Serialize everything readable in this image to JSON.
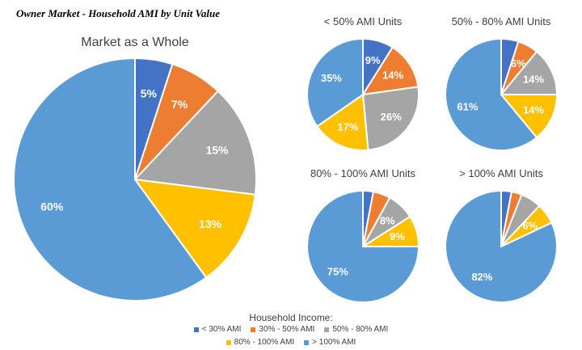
{
  "header": {
    "title": "Owner Market - Household AMI by Unit Value"
  },
  "chart_data": [
    {
      "type": "pie",
      "title": "Market as a Whole",
      "categories": [
        "< 30% AMI",
        "30% - 50% AMI",
        "50% - 80% AMI",
        "80% - 100% AMI",
        "> 100% AMI"
      ],
      "values": [
        5,
        7,
        15,
        13,
        60
      ],
      "labels": [
        "5%",
        "7%",
        "15%",
        "13%",
        "60%"
      ]
    },
    {
      "type": "pie",
      "title": "< 50% AMI Units",
      "categories": [
        "< 30% AMI",
        "30% - 50% AMI",
        "50% - 80% AMI",
        "80% - 100% AMI",
        "> 100% AMI"
      ],
      "values": [
        9,
        14,
        26,
        17,
        35
      ],
      "labels": [
        "9%",
        "14%",
        "26%",
        "17%",
        "35%"
      ]
    },
    {
      "type": "pie",
      "title": "50% - 80% AMI Units",
      "categories": [
        "< 30% AMI",
        "30% - 50% AMI",
        "50% - 80% AMI",
        "80% - 100% AMI",
        "> 100% AMI"
      ],
      "values": [
        5,
        6,
        14,
        14,
        61
      ],
      "labels": [
        "",
        "6%",
        "14%",
        "14%",
        "61%"
      ]
    },
    {
      "type": "pie",
      "title": "80% - 100% AMI Units",
      "categories": [
        "< 30% AMI",
        "30% - 50% AMI",
        "50% - 80% AMI",
        "80% - 100% AMI",
        "> 100% AMI"
      ],
      "values": [
        3,
        5,
        8,
        9,
        75
      ],
      "labels": [
        "",
        "",
        "8%",
        "9%",
        "75%"
      ]
    },
    {
      "type": "pie",
      "title": "> 100% AMI Units",
      "categories": [
        "< 30% AMI",
        "30% - 50% AMI",
        "50% - 80% AMI",
        "80% - 100% AMI",
        "> 100% AMI"
      ],
      "values": [
        3,
        3,
        6,
        6,
        82
      ],
      "labels": [
        "",
        "",
        "",
        "6%",
        "82%"
      ]
    }
  ],
  "legend": {
    "title": "Household Income:",
    "items": [
      {
        "label": "< 30% AMI",
        "color": "#4472C4"
      },
      {
        "label": "30% - 50% AMI",
        "color": "#ED7D31"
      },
      {
        "label": "50% - 80% AMI",
        "color": "#A5A5A5"
      },
      {
        "label": "80% - 100% AMI",
        "color": "#FFC000"
      },
      {
        "label": "> 100% AMI",
        "color": "#5B9BD5"
      }
    ]
  }
}
